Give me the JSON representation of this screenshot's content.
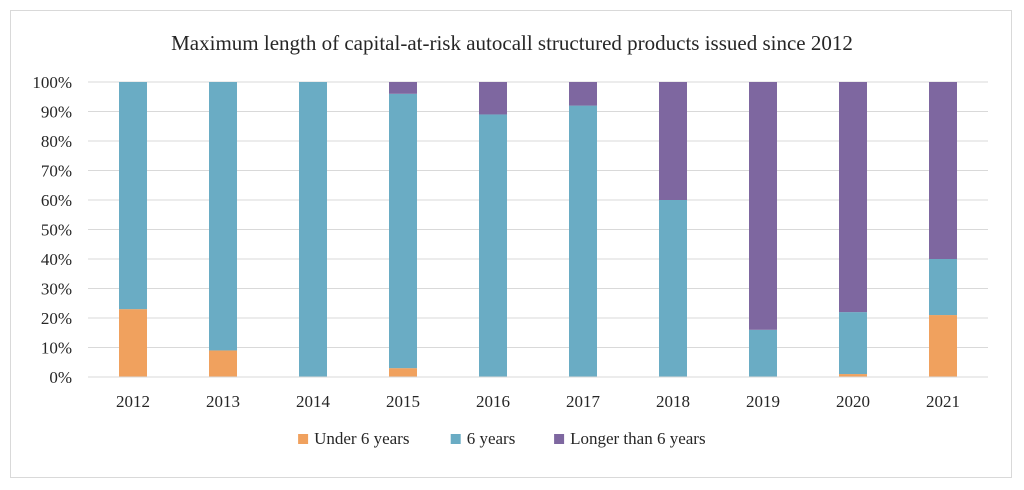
{
  "chart_data": {
    "type": "bar",
    "stacked": true,
    "title": "Maximum length of capital-at-risk autocall structured products issued since 2012",
    "xlabel": "",
    "ylabel": "",
    "categories": [
      "2012",
      "2013",
      "2014",
      "2015",
      "2016",
      "2017",
      "2018",
      "2019",
      "2020",
      "2021"
    ],
    "series": [
      {
        "name": "Under 6 years",
        "color": "#f0a15e",
        "values": [
          23,
          9,
          0,
          3,
          0,
          0,
          0,
          0,
          1,
          21
        ]
      },
      {
        "name": "6 years",
        "color": "#6aacc4",
        "values": [
          77,
          91,
          100,
          93,
          89,
          92,
          60,
          16,
          21,
          19
        ]
      },
      {
        "name": "Longer than 6 years",
        "color": "#7e67a0",
        "values": [
          0,
          0,
          0,
          4,
          11,
          8,
          40,
          84,
          78,
          60
        ]
      }
    ],
    "ylim": [
      0,
      100
    ],
    "yticks": [
      "0%",
      "10%",
      "20%",
      "30%",
      "40%",
      "50%",
      "60%",
      "70%",
      "80%",
      "90%",
      "100%"
    ],
    "grid": true,
    "legend_position": "bottom"
  }
}
